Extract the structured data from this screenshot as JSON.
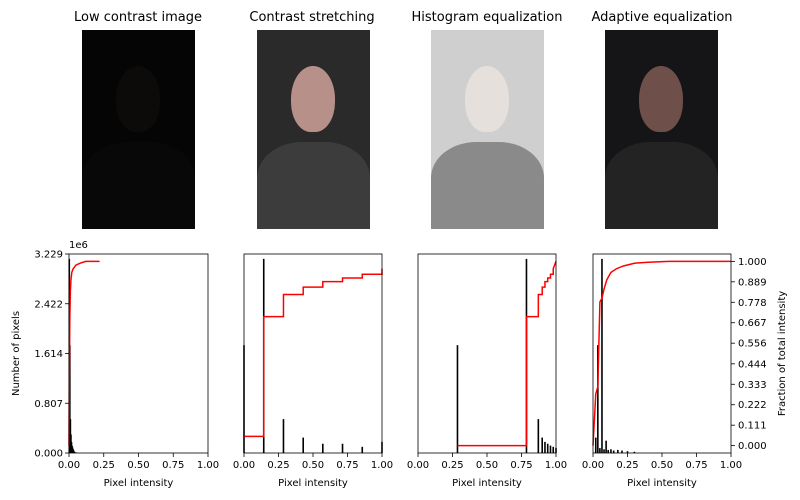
{
  "image_titles": [
    "Low contrast image",
    "Contrast stretching",
    "Histogram equalization",
    "Adaptive equalization"
  ],
  "photo_styles": [
    {
      "bg": "#050505",
      "face": "#0d0a0a",
      "body": "#080808"
    },
    {
      "bg": "#2a2a2a",
      "face": "#b8908a",
      "body": "#3c3c3c"
    },
    {
      "bg": "#cfcfcf",
      "face": "#e6e0dc",
      "body": "#8a8a8a"
    },
    {
      "bg": "#151518",
      "face": "#6e4f4a",
      "body": "#232323"
    }
  ],
  "colors": {
    "histogram": "#000000",
    "cdf": "#ff0000"
  },
  "chart_data": [
    {
      "type": "histogram_cdf",
      "name": "low-contrast",
      "xlabel": "Pixel intensity",
      "ylabel": "Number of pixels",
      "ylim": [
        0,
        3.229
      ],
      "yticks": [
        "0.000",
        "0.807",
        "1.614",
        "2.422",
        "3.229"
      ],
      "y_multiplier": "1e6",
      "xlim": [
        0,
        1
      ],
      "xticks": [
        "0.00",
        "0.25",
        "0.50",
        "0.75",
        "1.00"
      ],
      "hist_x": [
        0.002,
        0.006,
        0.01,
        0.014,
        0.018,
        0.022,
        0.026,
        0.03,
        0.034,
        0.04,
        0.05
      ],
      "hist_y": [
        3.15,
        1.75,
        0.55,
        0.3,
        0.18,
        0.12,
        0.09,
        0.06,
        0.04,
        0.02,
        0.01
      ],
      "cdf_x": [
        0.0,
        0.002,
        0.006,
        0.01,
        0.014,
        0.02,
        0.03,
        0.05,
        0.08,
        0.12,
        0.22
      ],
      "cdf_y": [
        0.0,
        0.35,
        0.7,
        0.84,
        0.9,
        0.94,
        0.96,
        0.98,
        0.99,
        1.0,
        1.0
      ]
    },
    {
      "type": "histogram_cdf",
      "name": "contrast-stretching",
      "xlabel": "Pixel intensity",
      "xlim": [
        0,
        1
      ],
      "xticks": [
        "0.00",
        "0.25",
        "0.50",
        "0.75",
        "1.00"
      ],
      "ylim": [
        0,
        3.229
      ],
      "hist_x": [
        0.0,
        0.143,
        0.286,
        0.429,
        0.571,
        0.714,
        0.857,
        1.0
      ],
      "hist_y": [
        1.75,
        3.15,
        0.55,
        0.25,
        0.15,
        0.15,
        0.1,
        0.18
      ],
      "cdf_x": [
        0.0,
        0.143,
        0.143,
        0.286,
        0.286,
        0.429,
        0.429,
        0.571,
        0.571,
        0.714,
        0.714,
        0.857,
        0.857,
        1.0,
        1.0
      ],
      "cdf_y": [
        0.05,
        0.05,
        0.7,
        0.7,
        0.82,
        0.82,
        0.86,
        0.86,
        0.89,
        0.89,
        0.91,
        0.91,
        0.93,
        0.93,
        0.96
      ]
    },
    {
      "type": "histogram_cdf",
      "name": "histogram-equalization",
      "xlabel": "Pixel intensity",
      "xlim": [
        0,
        1
      ],
      "xticks": [
        "0.00",
        "0.25",
        "0.50",
        "0.75",
        "1.00"
      ],
      "ylim": [
        0,
        3.229
      ],
      "hist_x": [
        0.286,
        0.786,
        0.872,
        0.9,
        0.92,
        0.94,
        0.96,
        0.98,
        1.0
      ],
      "hist_y": [
        1.75,
        3.15,
        0.55,
        0.25,
        0.18,
        0.15,
        0.12,
        0.1,
        0.08
      ],
      "cdf_x": [
        0.286,
        0.786,
        0.786,
        0.872,
        0.872,
        0.9,
        0.9,
        0.92,
        0.92,
        0.94,
        0.94,
        0.96,
        0.96,
        0.98,
        0.98,
        1.0
      ],
      "cdf_y": [
        0.0,
        0.0,
        0.7,
        0.7,
        0.82,
        0.82,
        0.86,
        0.86,
        0.89,
        0.89,
        0.91,
        0.91,
        0.93,
        0.93,
        0.96,
        1.0
      ]
    },
    {
      "type": "histogram_cdf",
      "name": "adaptive-equalization",
      "xlabel": "Pixel intensity",
      "ylabel_right": "Fraction of total intensity",
      "xlim": [
        0,
        1
      ],
      "xticks": [
        "0.00",
        "0.25",
        "0.50",
        "0.75",
        "1.00"
      ],
      "ylim": [
        0,
        3.229
      ],
      "y2lim": [
        -0.04,
        1.04
      ],
      "y2ticks": [
        "0.000",
        "0.111",
        "0.222",
        "0.333",
        "0.444",
        "0.556",
        "0.667",
        "0.778",
        "0.889",
        "1.000"
      ],
      "hist_x": [
        0.02,
        0.035,
        0.05,
        0.065,
        0.08,
        0.095,
        0.11,
        0.13,
        0.15,
        0.18,
        0.21,
        0.25,
        0.3
      ],
      "hist_y": [
        0.25,
        1.75,
        0.08,
        3.15,
        0.06,
        0.2,
        0.05,
        0.06,
        0.04,
        0.05,
        0.04,
        0.03,
        0.02
      ],
      "cdf_x": [
        0.0,
        0.02,
        0.035,
        0.05,
        0.065,
        0.08,
        0.1,
        0.13,
        0.17,
        0.22,
        0.3,
        0.4,
        0.55,
        0.75,
        1.0
      ],
      "cdf_y": [
        0.0,
        0.28,
        0.32,
        0.78,
        0.8,
        0.85,
        0.9,
        0.94,
        0.96,
        0.975,
        0.99,
        0.995,
        1.0,
        1.0,
        1.0
      ]
    }
  ]
}
